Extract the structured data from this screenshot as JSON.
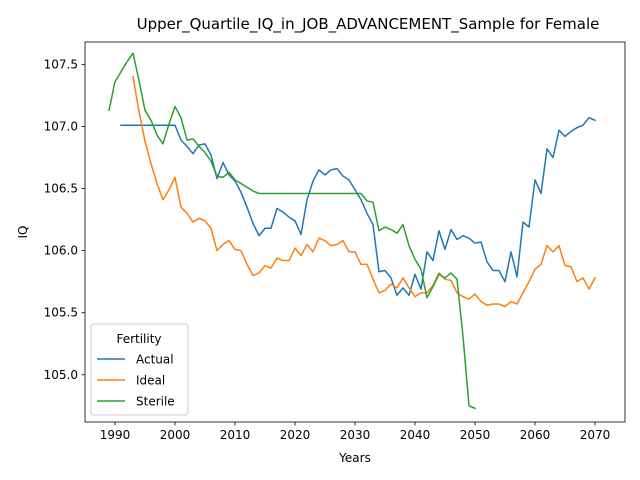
{
  "chart_data": {
    "type": "line",
    "title": "Upper_Quartile_IQ_in_JOB_ADVANCEMENT_Sample for Female",
    "xlabel": "Years",
    "ylabel": "IQ",
    "xlim": [
      1985,
      2075
    ],
    "ylim": [
      104.62,
      107.68
    ],
    "xticks": [
      1990,
      2000,
      2010,
      2020,
      2030,
      2040,
      2050,
      2060,
      2070
    ],
    "yticks": [
      105.0,
      105.5,
      106.0,
      106.5,
      107.0,
      107.5
    ],
    "xtick_labels": [
      "1990",
      "2000",
      "2010",
      "2020",
      "2030",
      "2040",
      "2050",
      "2060",
      "2070"
    ],
    "ytick_labels": [
      "105.0",
      "105.5",
      "106.0",
      "106.5",
      "107.0",
      "107.5"
    ],
    "grid": false,
    "legend": {
      "title": "Fertility",
      "placement": "lower-left"
    },
    "series": [
      {
        "name": "Actual",
        "color": "#1f77b4",
        "x": [
          1991,
          1992,
          1993,
          1994,
          1995,
          1996,
          1997,
          1998,
          1999,
          2000,
          2001,
          2002,
          2003,
          2004,
          2005,
          2006,
          2007,
          2008,
          2009,
          2010,
          2011,
          2012,
          2013,
          2014,
          2015,
          2016,
          2017,
          2018,
          2019,
          2020,
          2021,
          2022,
          2023,
          2024,
          2025,
          2026,
          2027,
          2028,
          2029,
          2030,
          2031,
          2032,
          2033,
          2034,
          2035,
          2036,
          2037,
          2038,
          2039,
          2040,
          2041,
          2042,
          2043,
          2044,
          2045,
          2046,
          2047,
          2048,
          2049,
          2050,
          2051,
          2052,
          2053,
          2054,
          2055,
          2056,
          2057,
          2058,
          2059,
          2060,
          2061,
          2062,
          2063,
          2064,
          2065,
          2066,
          2067,
          2068,
          2069,
          2070
        ],
        "values": [
          107.01,
          107.01,
          107.01,
          107.01,
          107.01,
          107.01,
          107.01,
          107.01,
          107.01,
          107.01,
          106.89,
          106.84,
          106.78,
          106.85,
          106.86,
          106.77,
          106.58,
          106.71,
          106.61,
          106.56,
          106.47,
          106.35,
          106.22,
          106.12,
          106.18,
          106.18,
          106.34,
          106.31,
          106.27,
          106.24,
          106.13,
          106.41,
          106.56,
          106.65,
          106.61,
          106.65,
          106.66,
          106.6,
          106.57,
          106.49,
          106.41,
          106.3,
          106.21,
          105.83,
          105.84,
          105.78,
          105.64,
          105.7,
          105.64,
          105.81,
          105.69,
          105.99,
          105.92,
          106.16,
          106.01,
          106.17,
          106.09,
          106.12,
          106.1,
          106.06,
          106.07,
          105.91,
          105.84,
          105.84,
          105.75,
          105.99,
          105.79,
          106.23,
          106.19,
          106.57,
          106.46,
          106.82,
          106.75,
          106.97,
          106.92,
          106.96,
          106.99,
          107.01,
          107.07,
          107.05
        ]
      },
      {
        "name": "Ideal",
        "color": "#ff7f0e",
        "x": [
          1993,
          1994,
          1995,
          1996,
          1997,
          1998,
          1999,
          2000,
          2001,
          2002,
          2003,
          2004,
          2005,
          2006,
          2007,
          2008,
          2009,
          2010,
          2011,
          2012,
          2013,
          2014,
          2015,
          2016,
          2017,
          2018,
          2019,
          2020,
          2021,
          2022,
          2023,
          2024,
          2025,
          2026,
          2027,
          2028,
          2029,
          2030,
          2031,
          2032,
          2033,
          2034,
          2035,
          2036,
          2037,
          2038,
          2039,
          2040,
          2041,
          2042,
          2043,
          2044,
          2045,
          2046,
          2047,
          2048,
          2049,
          2050,
          2051,
          2052,
          2053,
          2054,
          2055,
          2056,
          2057,
          2058,
          2059,
          2060,
          2061,
          2062,
          2063,
          2064,
          2065,
          2066,
          2067,
          2068,
          2069,
          2070
        ],
        "values": [
          107.4,
          107.12,
          106.88,
          106.7,
          106.54,
          106.41,
          106.49,
          106.59,
          106.35,
          106.3,
          106.23,
          106.26,
          106.24,
          106.18,
          106.0,
          106.05,
          106.08,
          106.01,
          106.0,
          105.89,
          105.8,
          105.82,
          105.88,
          105.86,
          105.94,
          105.92,
          105.92,
          106.02,
          105.96,
          106.05,
          105.99,
          106.1,
          106.08,
          106.04,
          106.05,
          106.08,
          105.99,
          105.99,
          105.89,
          105.89,
          105.77,
          105.66,
          105.68,
          105.73,
          105.7,
          105.78,
          105.7,
          105.63,
          105.66,
          105.66,
          105.72,
          105.82,
          105.77,
          105.76,
          105.66,
          105.63,
          105.61,
          105.65,
          105.59,
          105.56,
          105.57,
          105.57,
          105.55,
          105.59,
          105.57,
          105.66,
          105.75,
          105.85,
          105.89,
          106.04,
          105.99,
          106.04,
          105.88,
          105.87,
          105.75,
          105.78,
          105.69,
          105.78
        ]
      },
      {
        "name": "Sterile",
        "color": "#2ca02c",
        "x": [
          1989,
          1990,
          1991,
          1992,
          1993,
          1994,
          1995,
          1996,
          1997,
          1998,
          1999,
          2000,
          2001,
          2002,
          2003,
          2004,
          2005,
          2006,
          2007,
          2008,
          2009,
          2010,
          2011,
          2012,
          2013,
          2014,
          2015,
          2016,
          2017,
          2018,
          2019,
          2020,
          2021,
          2022,
          2023,
          2024,
          2025,
          2026,
          2027,
          2028,
          2029,
          2030,
          2031,
          2032,
          2033,
          2034,
          2035,
          2036,
          2037,
          2038,
          2039,
          2040,
          2041,
          2042,
          2043,
          2044,
          2045,
          2046,
          2047,
          2048,
          2049,
          2050
        ],
        "values": [
          107.13,
          107.36,
          107.44,
          107.52,
          107.59,
          107.37,
          107.13,
          107.05,
          106.93,
          106.86,
          107.02,
          107.16,
          107.07,
          106.89,
          106.9,
          106.84,
          106.79,
          106.72,
          106.6,
          106.59,
          106.63,
          106.57,
          106.54,
          106.51,
          106.48,
          106.46,
          106.46,
          106.46,
          106.46,
          106.46,
          106.46,
          106.46,
          106.46,
          106.46,
          106.46,
          106.46,
          106.46,
          106.46,
          106.46,
          106.46,
          106.46,
          106.46,
          106.46,
          106.4,
          106.39,
          106.16,
          106.19,
          106.17,
          106.14,
          106.21,
          106.04,
          105.93,
          105.85,
          105.62,
          105.71,
          105.81,
          105.78,
          105.82,
          105.77,
          105.31,
          104.75,
          104.73
        ]
      }
    ]
  }
}
